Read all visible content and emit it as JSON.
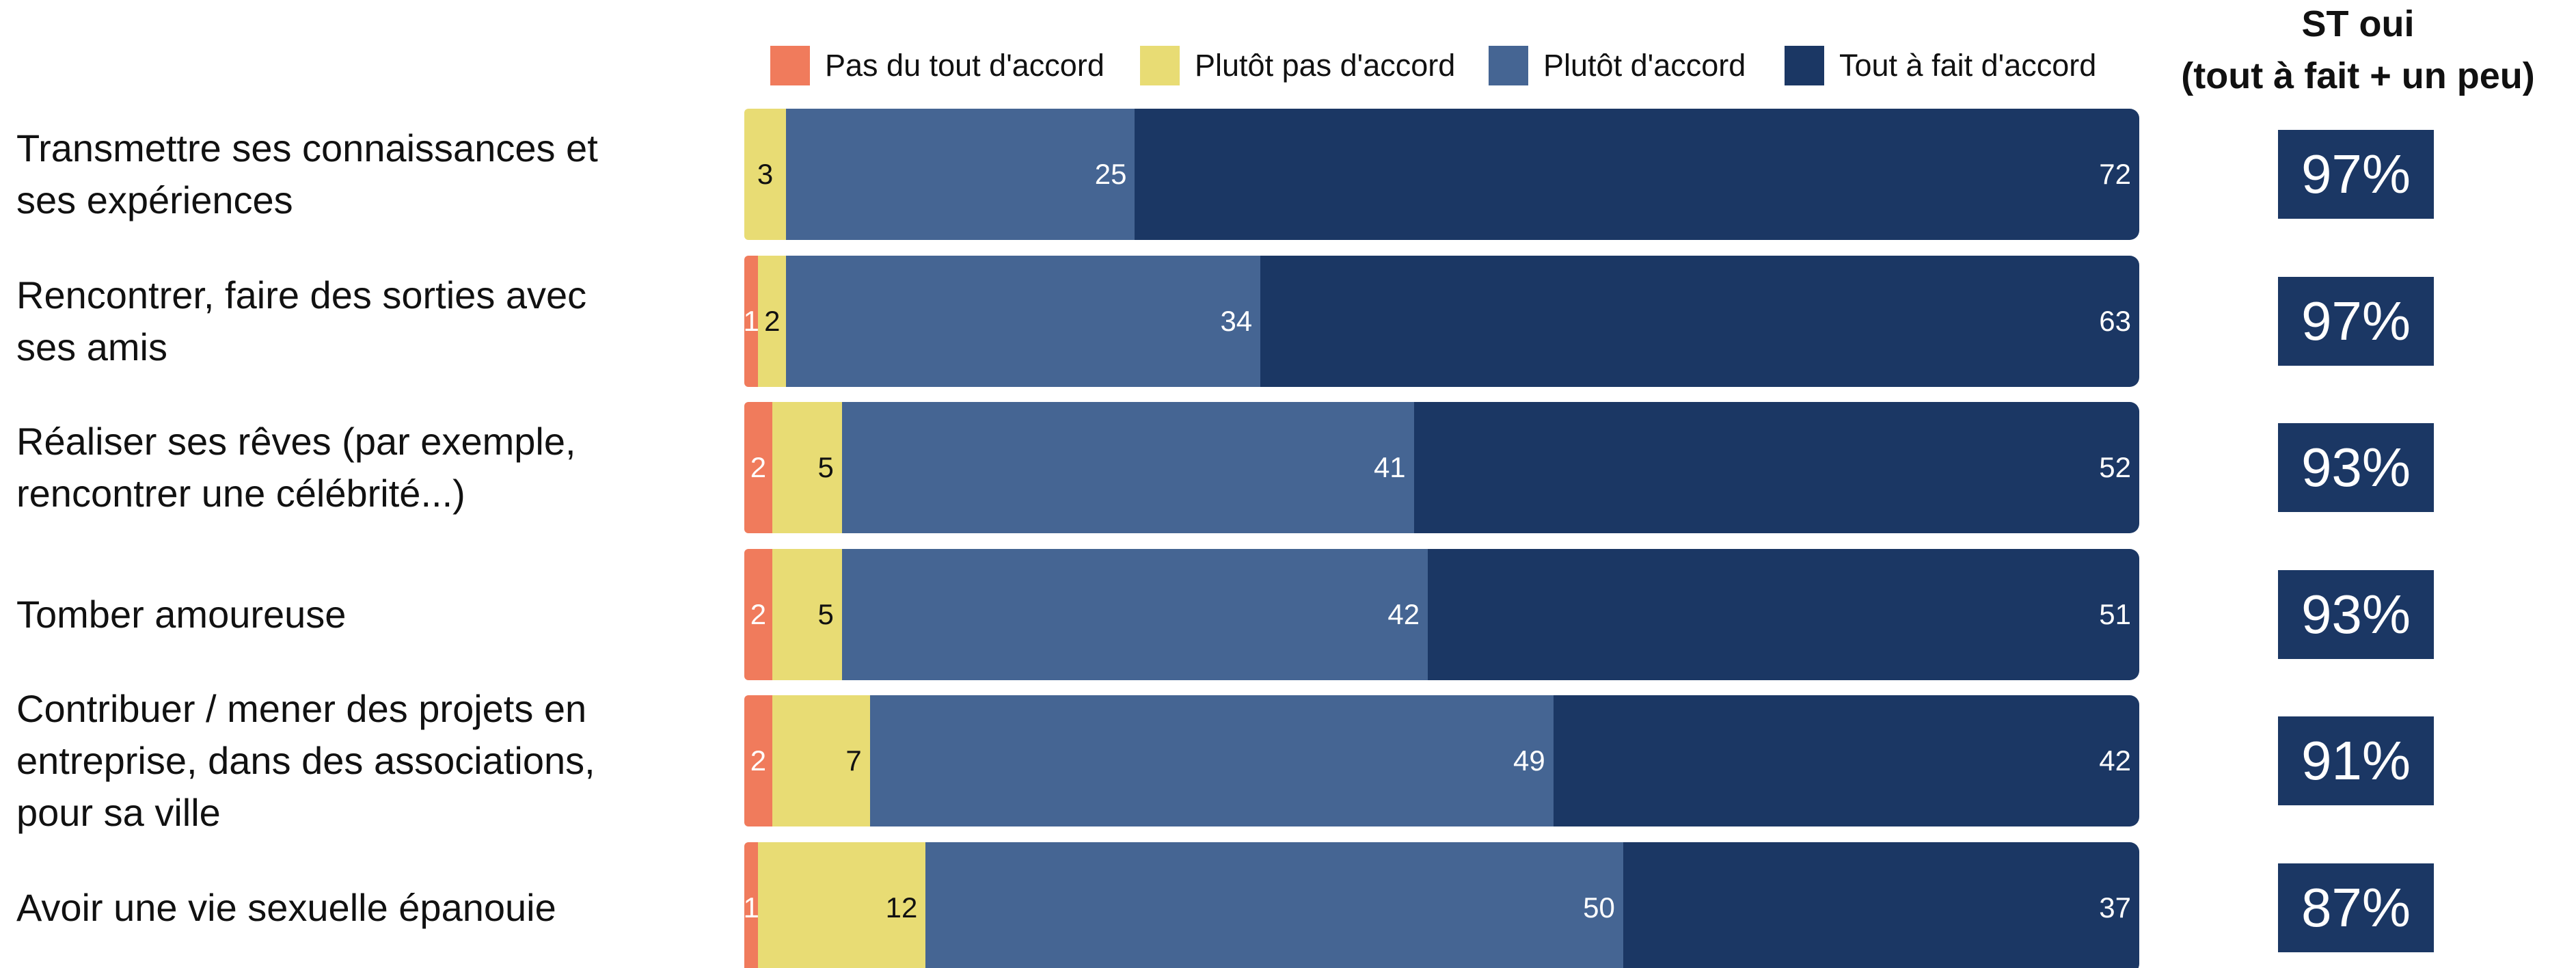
{
  "chart_data": {
    "type": "stacked-bar-horizontal",
    "categories": [
      "Transmettre ses connaissances et\nses expériences",
      "Rencontrer, faire des sorties avec\nses amis",
      "Réaliser ses rêves (par exemple,\nrencontrer une célébrité...)",
      "Tomber amoureuse",
      "Contribuer / mener des projets en\nentreprise, dans des associations,\npour sa ville",
      "Avoir une vie sexuelle épanouie"
    ],
    "series": [
      {
        "name": "Pas du tout d'accord",
        "color": "#f07b5c",
        "label_color": "#ffffff",
        "values": [
          null,
          1,
          2,
          2,
          2,
          1
        ]
      },
      {
        "name": "Plutôt pas d'accord",
        "color": "#e8dc74",
        "label_color": "#111111",
        "values": [
          3,
          2,
          5,
          5,
          7,
          12
        ]
      },
      {
        "name": "Plutôt d'accord",
        "color": "#456593",
        "label_color": "#ffffff",
        "values": [
          25,
          34,
          41,
          42,
          49,
          50
        ]
      },
      {
        "name": "Tout à fait d'accord",
        "color": "#1b3764",
        "label_color": "#ffffff",
        "values": [
          72,
          63,
          52,
          51,
          42,
          37
        ]
      }
    ],
    "xlim": [
      0,
      100
    ],
    "totals_title": "ST oui",
    "totals_subtitle": "(tout à fait + un peu)",
    "totals": {
      "values": [
        97,
        97,
        93,
        93,
        91,
        87
      ],
      "value_labels": [
        "97%",
        "97%",
        "93%",
        "93%",
        "91%",
        "87%"
      ]
    }
  }
}
